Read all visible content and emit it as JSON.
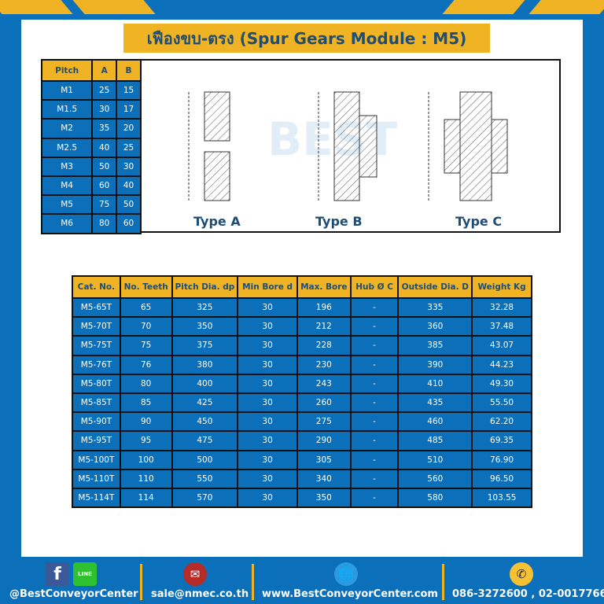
{
  "title": "เฟืองขบ-ตรง (Spur Gears Module : M5)",
  "pitch_table": {
    "headers": [
      "Pitch",
      "A",
      "B"
    ],
    "rows": [
      [
        "M1",
        "25",
        "15"
      ],
      [
        "M1.5",
        "30",
        "17"
      ],
      [
        "M2",
        "35",
        "20"
      ],
      [
        "M2.5",
        "40",
        "25"
      ],
      [
        "M3",
        "50",
        "30"
      ],
      [
        "M4",
        "60",
        "40"
      ],
      [
        "M5",
        "75",
        "50"
      ],
      [
        "M6",
        "80",
        "60"
      ]
    ]
  },
  "diagram": {
    "types": [
      "Type A",
      "Type B",
      "Type C"
    ],
    "watermark": "BEST CONVEYOR CENTER"
  },
  "spec_table": {
    "headers": [
      "Cat. No.",
      "No. Teeth",
      "Pitch Dia. dp",
      "Min Bore d",
      "Max. Bore",
      "Hub Ø C",
      "Outside Dia. D",
      "Weight Kg"
    ],
    "rows": [
      [
        "M5-65T",
        "65",
        "325",
        "30",
        "196",
        "-",
        "335",
        "32.28"
      ],
      [
        "M5-70T",
        "70",
        "350",
        "30",
        "212",
        "-",
        "360",
        "37.48"
      ],
      [
        "M5-75T",
        "75",
        "375",
        "30",
        "228",
        "-",
        "385",
        "43.07"
      ],
      [
        "M5-76T",
        "76",
        "380",
        "30",
        "230",
        "-",
        "390",
        "44.23"
      ],
      [
        "M5-80T",
        "80",
        "400",
        "30",
        "243",
        "-",
        "410",
        "49.30"
      ],
      [
        "M5-85T",
        "85",
        "425",
        "30",
        "260",
        "-",
        "435",
        "55.50"
      ],
      [
        "M5-90T",
        "90",
        "450",
        "30",
        "275",
        "-",
        "460",
        "62.20"
      ],
      [
        "M5-95T",
        "95",
        "475",
        "30",
        "290",
        "-",
        "485",
        "69.35"
      ],
      [
        "M5-100T",
        "100",
        "500",
        "30",
        "305",
        "-",
        "510",
        "76.90"
      ],
      [
        "M5-110T",
        "110",
        "550",
        "30",
        "340",
        "-",
        "560",
        "96.50"
      ],
      [
        "M5-114T",
        "114",
        "570",
        "30",
        "350",
        "-",
        "580",
        "103.55"
      ]
    ]
  },
  "footer": {
    "social": "@BestConveyorCenter",
    "email": "sale@nmec.co.th",
    "website": "www.BestConveyorCenter.com",
    "phone": "086-3272600 , 02-0017766",
    "line_label": "LINE"
  },
  "colors": {
    "blue": "#0b6fba",
    "gold": "#f0b323",
    "navy": "#1f4d74"
  }
}
